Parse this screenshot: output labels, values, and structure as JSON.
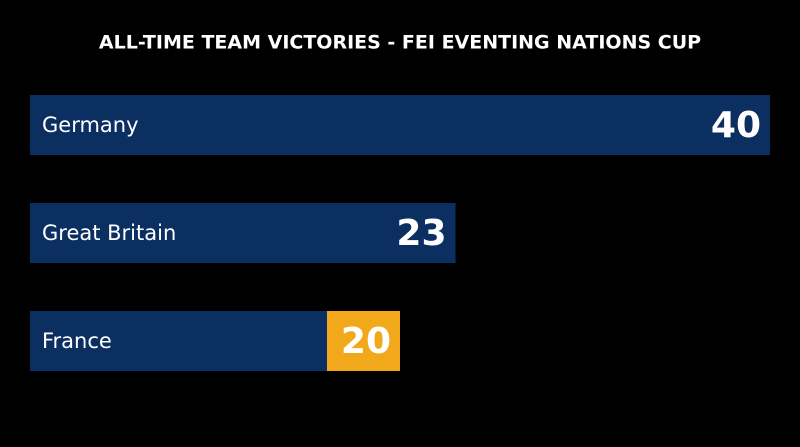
{
  "chart_data": {
    "type": "bar",
    "orientation": "horizontal",
    "title": "ALL-TIME TEAM VICTORIES - FEI EVENTING NATIONS CUP",
    "categories": [
      "Germany",
      "Great Britain",
      "France"
    ],
    "values": [
      40,
      23,
      20
    ],
    "color": "#0c2f62",
    "value_box_colors": [
      "#0c2f62",
      "#0c2f62",
      "#f2a81b"
    ],
    "xlim": [
      0,
      40
    ]
  }
}
